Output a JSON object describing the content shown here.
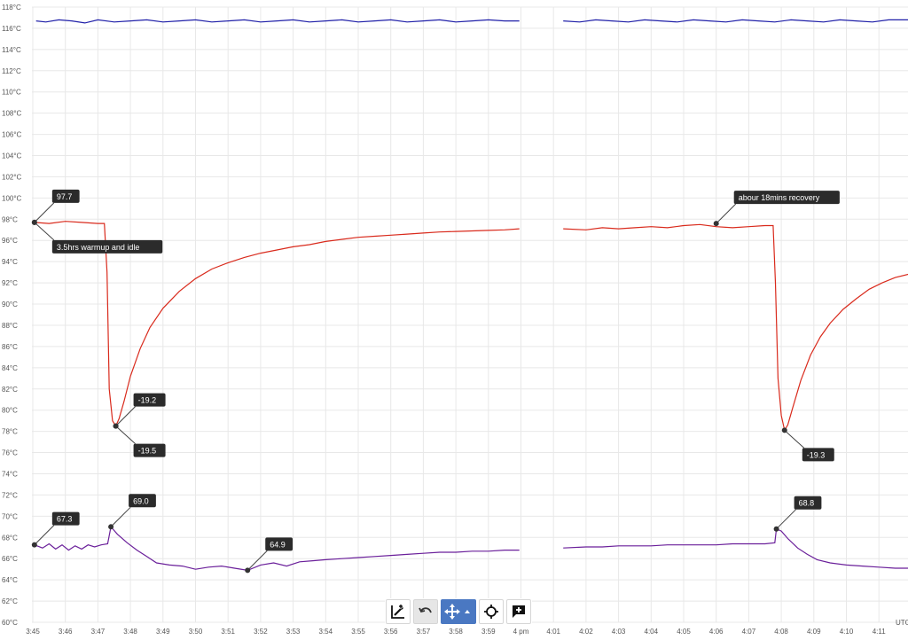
{
  "chart_data": {
    "type": "line",
    "ylabels": [
      "118°C",
      "116°C",
      "114°C",
      "112°C",
      "110°C",
      "108°C",
      "106°C",
      "104°C",
      "102°C",
      "100°C",
      "98°C",
      "96°C",
      "94°C",
      "92°C",
      "90°C",
      "88°C",
      "86°C",
      "84°C",
      "82°C",
      "80°C",
      "78°C",
      "76°C",
      "74°C",
      "72°C",
      "70°C",
      "68°C",
      "66°C",
      "64°C",
      "62°C",
      "60°C"
    ],
    "ylim": [
      60,
      118
    ],
    "xlabels": [
      "3:45",
      "3:46",
      "3:47",
      "3:48",
      "3:49",
      "3:50",
      "3:51",
      "3:52",
      "3:53",
      "3:54",
      "3:55",
      "3:56",
      "3:57",
      "3:58",
      "3:59",
      "4 pm",
      "4:01",
      "4:02",
      "4:03",
      "4:04",
      "4:05",
      "4:06",
      "4:07",
      "4:08",
      "4:09",
      "4:10",
      "4:11"
    ],
    "timezone_label": "UTC",
    "grid": true,
    "series": [
      {
        "color": "#1f1fa8",
        "segments": [
          [
            [
              0.1,
              116.7
            ],
            [
              0.4,
              116.6
            ],
            [
              0.8,
              116.8
            ],
            [
              1.2,
              116.7
            ],
            [
              1.6,
              116.5
            ],
            [
              2.0,
              116.8
            ],
            [
              2.5,
              116.6
            ],
            [
              3.0,
              116.7
            ],
            [
              3.5,
              116.8
            ],
            [
              4.0,
              116.6
            ],
            [
              4.5,
              116.7
            ],
            [
              5.0,
              116.8
            ],
            [
              5.5,
              116.6
            ],
            [
              6.0,
              116.7
            ],
            [
              6.5,
              116.8
            ],
            [
              7.0,
              116.6
            ],
            [
              7.5,
              116.7
            ],
            [
              8.0,
              116.8
            ],
            [
              8.5,
              116.6
            ],
            [
              9.0,
              116.7
            ],
            [
              9.5,
              116.8
            ],
            [
              10.0,
              116.6
            ],
            [
              10.5,
              116.7
            ],
            [
              11.0,
              116.8
            ],
            [
              11.5,
              116.6
            ],
            [
              12.0,
              116.7
            ],
            [
              12.5,
              116.8
            ],
            [
              13.0,
              116.6
            ],
            [
              13.5,
              116.7
            ],
            [
              14.0,
              116.8
            ],
            [
              14.5,
              116.7
            ],
            [
              14.95,
              116.7
            ]
          ],
          [
            [
              16.3,
              116.7
            ],
            [
              16.8,
              116.6
            ],
            [
              17.3,
              116.8
            ],
            [
              17.8,
              116.7
            ],
            [
              18.3,
              116.6
            ],
            [
              18.8,
              116.8
            ],
            [
              19.3,
              116.7
            ],
            [
              19.8,
              116.6
            ],
            [
              20.3,
              116.8
            ],
            [
              20.8,
              116.7
            ],
            [
              21.3,
              116.6
            ],
            [
              21.8,
              116.8
            ],
            [
              22.3,
              116.7
            ],
            [
              22.8,
              116.6
            ],
            [
              23.3,
              116.8
            ],
            [
              23.8,
              116.7
            ],
            [
              24.3,
              116.6
            ],
            [
              24.8,
              116.8
            ],
            [
              25.3,
              116.7
            ],
            [
              25.8,
              116.6
            ],
            [
              26.3,
              116.8
            ],
            [
              26.9,
              116.8
            ]
          ]
        ]
      },
      {
        "color": "#d92a1c",
        "segments": [
          [
            [
              0.05,
              97.7
            ],
            [
              0.5,
              97.6
            ],
            [
              1.0,
              97.8
            ],
            [
              1.5,
              97.7
            ],
            [
              2.0,
              97.6
            ],
            [
              2.2,
              97.6
            ],
            [
              2.28,
              93
            ],
            [
              2.35,
              82
            ],
            [
              2.45,
              79
            ],
            [
              2.55,
              78.5
            ],
            [
              2.65,
              79.2
            ],
            [
              2.8,
              80.8
            ],
            [
              3.0,
              83.2
            ],
            [
              3.3,
              85.8
            ],
            [
              3.6,
              87.8
            ],
            [
              4.0,
              89.6
            ],
            [
              4.5,
              91.2
            ],
            [
              5.0,
              92.4
            ],
            [
              5.5,
              93.3
            ],
            [
              6.0,
              93.9
            ],
            [
              6.5,
              94.4
            ],
            [
              7.0,
              94.8
            ],
            [
              7.5,
              95.1
            ],
            [
              8.0,
              95.4
            ],
            [
              8.5,
              95.6
            ],
            [
              9.0,
              95.9
            ],
            [
              9.5,
              96.1
            ],
            [
              10.0,
              96.3
            ],
            [
              10.5,
              96.4
            ],
            [
              11.0,
              96.5
            ],
            [
              11.5,
              96.6
            ],
            [
              12.0,
              96.7
            ],
            [
              12.5,
              96.8
            ],
            [
              13.0,
              96.85
            ],
            [
              13.5,
              96.9
            ],
            [
              14.0,
              96.95
            ],
            [
              14.5,
              97.0
            ],
            [
              14.95,
              97.1
            ]
          ],
          [
            [
              16.3,
              97.1
            ],
            [
              17.0,
              97.0
            ],
            [
              17.5,
              97.2
            ],
            [
              18.0,
              97.1
            ],
            [
              18.5,
              97.2
            ],
            [
              19.0,
              97.3
            ],
            [
              19.5,
              97.2
            ],
            [
              20.0,
              97.4
            ],
            [
              20.5,
              97.5
            ],
            [
              21.0,
              97.3
            ],
            [
              21.5,
              97.2
            ],
            [
              22.0,
              97.3
            ],
            [
              22.5,
              97.4
            ],
            [
              22.75,
              97.4
            ],
            [
              22.82,
              92
            ],
            [
              22.9,
              83
            ],
            [
              23.0,
              79.5
            ],
            [
              23.1,
              78.1
            ],
            [
              23.2,
              78.6
            ],
            [
              23.35,
              80.2
            ],
            [
              23.6,
              82.8
            ],
            [
              23.9,
              85.2
            ],
            [
              24.2,
              86.9
            ],
            [
              24.5,
              88.2
            ],
            [
              24.9,
              89.5
            ],
            [
              25.3,
              90.5
            ],
            [
              25.7,
              91.4
            ],
            [
              26.1,
              92.0
            ],
            [
              26.5,
              92.5
            ],
            [
              26.9,
              92.8
            ]
          ]
        ]
      },
      {
        "color": "#6a1f9a",
        "segments": [
          [
            [
              0.05,
              67.3
            ],
            [
              0.3,
              67.0
            ],
            [
              0.5,
              67.4
            ],
            [
              0.7,
              66.9
            ],
            [
              0.9,
              67.3
            ],
            [
              1.1,
              66.8
            ],
            [
              1.3,
              67.2
            ],
            [
              1.5,
              66.9
            ],
            [
              1.7,
              67.3
            ],
            [
              1.9,
              67.1
            ],
            [
              2.1,
              67.3
            ],
            [
              2.3,
              67.4
            ],
            [
              2.4,
              69.0
            ],
            [
              2.6,
              68.3
            ],
            [
              2.9,
              67.5
            ],
            [
              3.2,
              66.8
            ],
            [
              3.5,
              66.2
            ],
            [
              3.8,
              65.6
            ],
            [
              4.2,
              65.4
            ],
            [
              4.6,
              65.3
            ],
            [
              5.0,
              65.0
            ],
            [
              5.4,
              65.2
            ],
            [
              5.8,
              65.3
            ],
            [
              6.2,
              65.1
            ],
            [
              6.6,
              64.9
            ],
            [
              7.0,
              65.4
            ],
            [
              7.4,
              65.6
            ],
            [
              7.8,
              65.3
            ],
            [
              8.2,
              65.7
            ],
            [
              8.6,
              65.8
            ],
            [
              9.0,
              65.9
            ],
            [
              9.5,
              66.0
            ],
            [
              10.0,
              66.1
            ],
            [
              10.5,
              66.2
            ],
            [
              11.0,
              66.3
            ],
            [
              11.5,
              66.4
            ],
            [
              12.0,
              66.5
            ],
            [
              12.5,
              66.6
            ],
            [
              13.0,
              66.6
            ],
            [
              13.5,
              66.7
            ],
            [
              14.0,
              66.7
            ],
            [
              14.5,
              66.8
            ],
            [
              14.95,
              66.8
            ]
          ],
          [
            [
              16.3,
              67.0
            ],
            [
              17.0,
              67.1
            ],
            [
              17.5,
              67.1
            ],
            [
              18.0,
              67.2
            ],
            [
              18.5,
              67.2
            ],
            [
              19.0,
              67.2
            ],
            [
              19.5,
              67.3
            ],
            [
              20.0,
              67.3
            ],
            [
              20.5,
              67.3
            ],
            [
              21.0,
              67.3
            ],
            [
              21.5,
              67.4
            ],
            [
              22.0,
              67.4
            ],
            [
              22.5,
              67.4
            ],
            [
              22.8,
              67.5
            ],
            [
              22.85,
              68.8
            ],
            [
              23.0,
              68.6
            ],
            [
              23.2,
              67.9
            ],
            [
              23.5,
              67.0
            ],
            [
              23.8,
              66.4
            ],
            [
              24.1,
              65.9
            ],
            [
              24.5,
              65.6
            ],
            [
              25.0,
              65.4
            ],
            [
              25.5,
              65.3
            ],
            [
              26.0,
              65.2
            ],
            [
              26.5,
              65.1
            ],
            [
              26.9,
              65.1
            ]
          ]
        ]
      }
    ],
    "annotations": [
      {
        "text": "97.7",
        "x": 0.05,
        "y": 97.7,
        "dir": "up"
      },
      {
        "text": "3.5hrs warmup and idle",
        "x": 0.05,
        "y": 97.7,
        "dir": "down"
      },
      {
        "text": "-19.2",
        "x": 2.55,
        "y": 78.5,
        "dir": "up"
      },
      {
        "text": "-19.5",
        "x": 2.55,
        "y": 78.5,
        "dir": "down"
      },
      {
        "text": "abour 18mins recovery",
        "x": 21.0,
        "y": 97.6,
        "dir": "up"
      },
      {
        "text": "-19.3",
        "x": 23.1,
        "y": 78.1,
        "dir": "down"
      },
      {
        "text": "67.3",
        "x": 0.05,
        "y": 67.3,
        "dir": "up"
      },
      {
        "text": "69.0",
        "x": 2.4,
        "y": 69.0,
        "dir": "up"
      },
      {
        "text": "64.9",
        "x": 6.6,
        "y": 64.9,
        "dir": "up"
      },
      {
        "text": "68.8",
        "x": 22.85,
        "y": 68.8,
        "dir": "up"
      }
    ]
  },
  "toolbar": {
    "buttons": [
      {
        "icon": "chart-edit-icon"
      },
      {
        "icon": "undo-icon"
      },
      {
        "icon": "pan-move-icon"
      },
      {
        "icon": "crosshair-icon"
      },
      {
        "icon": "add-comment-icon"
      }
    ]
  }
}
